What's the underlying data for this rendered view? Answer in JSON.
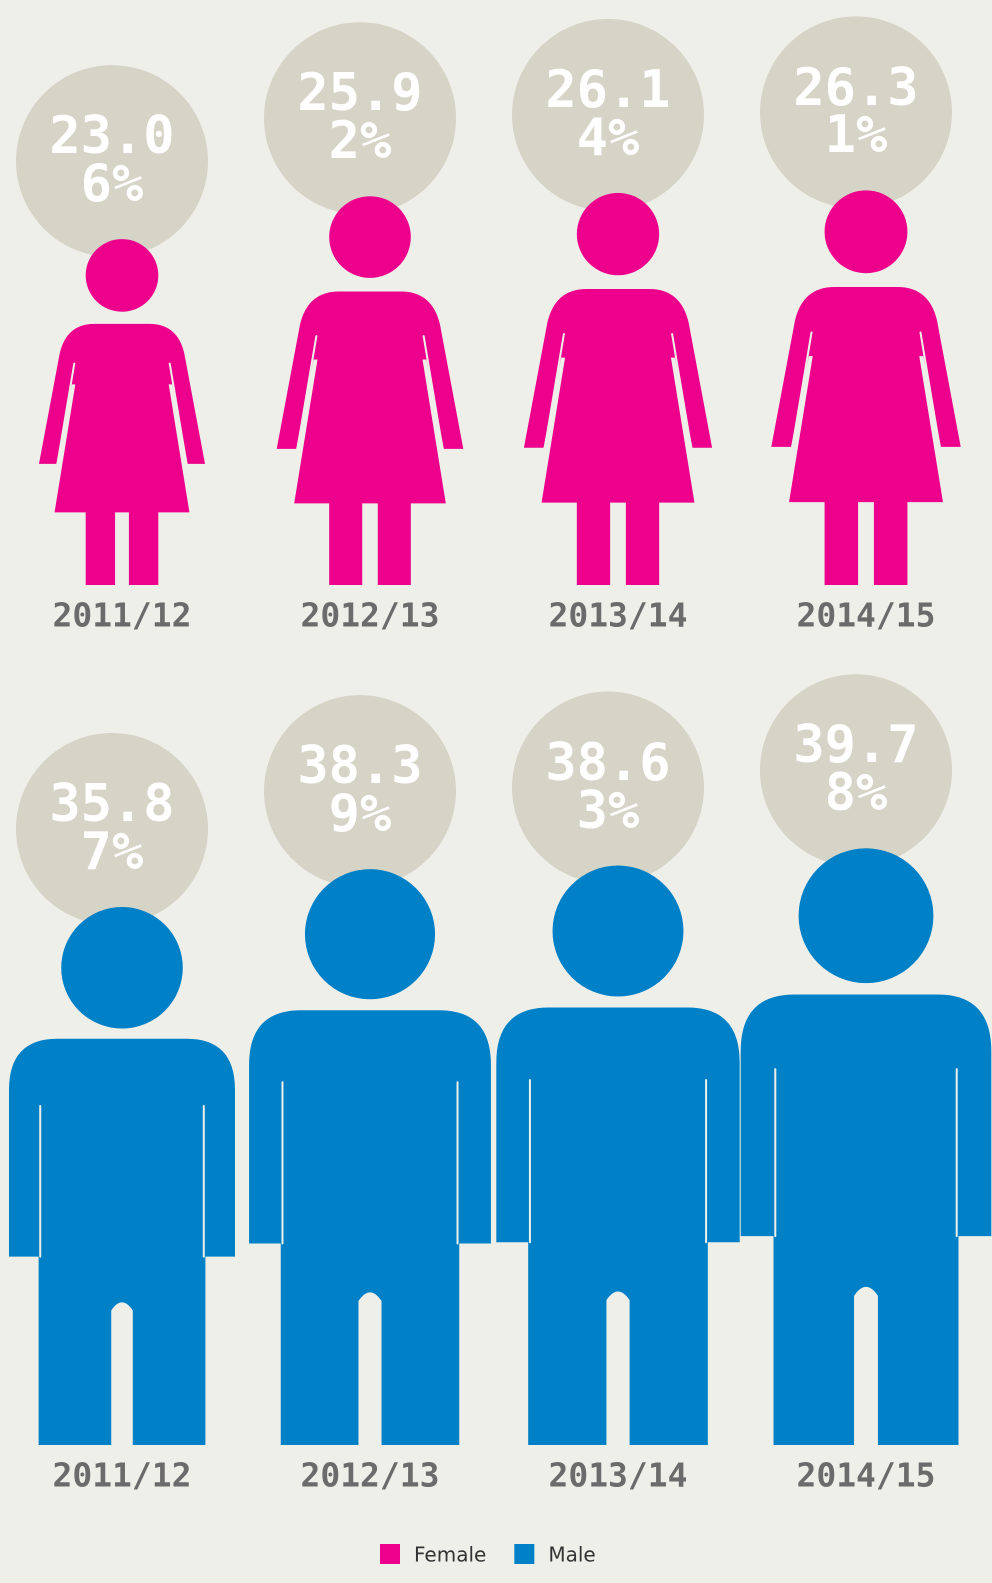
{
  "chart_data": {
    "type": "pictogram",
    "categories": [
      "2011/12",
      "2012/13",
      "2013/14",
      "2014/15"
    ],
    "series": [
      {
        "name": "Female",
        "color": "#ec008c",
        "values": [
          23.06,
          25.92,
          26.14,
          26.31
        ],
        "value_labels": [
          "23.06%",
          "25.92%",
          "26.14%",
          "26.31%"
        ]
      },
      {
        "name": "Male",
        "color": "#0080c6",
        "values": [
          35.87,
          38.39,
          38.63,
          39.78
        ],
        "value_labels": [
          "35.87%",
          "38.39%",
          "38.63%",
          "39.78%"
        ]
      }
    ]
  }
}
